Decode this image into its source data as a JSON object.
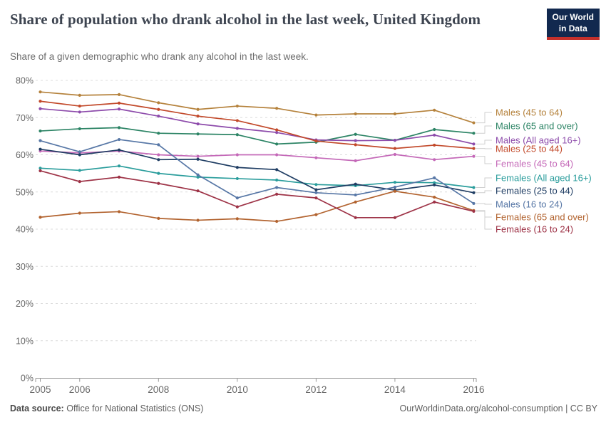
{
  "logo": {
    "line1": "Our World",
    "line2": "in Data",
    "bg_color": "#12294f",
    "accent_color": "#c5302b"
  },
  "footer": {
    "source_label": "Data source:",
    "source_value": "Office for National Statistics (ONS)",
    "rights": "OurWorldinData.org/alcohol-consumption | CC BY"
  },
  "chart_data": {
    "type": "line",
    "title": "Share of population who drank alcohol in the last week, United Kingdom",
    "subtitle": "Share of a given demographic who drank any alcohol in the last week.",
    "x": [
      2005,
      2006,
      2007,
      2008,
      2009,
      2010,
      2011,
      2012,
      2013,
      2014,
      2015,
      2016
    ],
    "xticks": [
      "2005",
      "2006",
      "2008",
      "2010",
      "2012",
      "2014",
      "2016"
    ],
    "yticks": [
      "0%",
      "10%",
      "20%",
      "30%",
      "40%",
      "50%",
      "60%",
      "70%",
      "80%"
    ],
    "ylim": [
      0,
      80
    ],
    "xlim": [
      2005,
      2016
    ],
    "grid": "horizontal-dashed",
    "legend_position": "right",
    "unit": "%",
    "series": [
      {
        "name": "Males (45 to 64)",
        "color": "#b5823c",
        "values": [
          76.9,
          76.0,
          76.2,
          74.0,
          72.2,
          73.1,
          72.5,
          70.7,
          71.0,
          71.0,
          72.0,
          68.6
        ]
      },
      {
        "name": "Males (65 and over)",
        "color": "#2c8465",
        "values": [
          66.4,
          67.0,
          67.3,
          65.8,
          65.6,
          65.4,
          62.9,
          63.4,
          65.5,
          63.9,
          66.8,
          65.8
        ]
      },
      {
        "name": "Males (All aged 16+)",
        "color": "#8d4bab",
        "values": [
          72.4,
          71.5,
          72.3,
          70.4,
          68.3,
          67.1,
          66.0,
          64.0,
          63.8,
          63.9,
          65.3,
          62.9
        ]
      },
      {
        "name": "Males (25 to 44)",
        "color": "#c2492a",
        "values": [
          74.4,
          73.1,
          73.9,
          72.2,
          70.4,
          69.2,
          66.7,
          63.7,
          62.7,
          61.7,
          62.6,
          61.7
        ]
      },
      {
        "name": "Females (45 to 64)",
        "color": "#c469b8",
        "values": [
          61.0,
          60.5,
          61.0,
          60.0,
          59.6,
          60.0,
          60.0,
          59.2,
          58.4,
          60.1,
          58.7,
          59.6
        ]
      },
      {
        "name": "Females (All aged 16+)",
        "color": "#2a9d9c",
        "values": [
          56.4,
          55.8,
          57.0,
          55.0,
          54.0,
          53.6,
          53.2,
          52.0,
          51.7,
          52.6,
          52.5,
          51.2
        ]
      },
      {
        "name": "Females (25 to 44)",
        "color": "#1f3d63",
        "values": [
          61.5,
          60.0,
          61.3,
          58.7,
          58.8,
          56.6,
          56.0,
          50.6,
          52.1,
          50.5,
          51.9,
          49.8
        ]
      },
      {
        "name": "Males (16 to 24)",
        "color": "#5777a6",
        "values": [
          63.8,
          60.8,
          64.1,
          62.7,
          54.6,
          48.4,
          51.2,
          49.8,
          49.2,
          51.3,
          53.8,
          46.9
        ]
      },
      {
        "name": "Females (65 and over)",
        "color": "#b2632f",
        "values": [
          43.2,
          44.3,
          44.7,
          42.9,
          42.4,
          42.8,
          42.1,
          43.9,
          47.3,
          50.2,
          48.6,
          45.0
        ]
      },
      {
        "name": "Females (16 to 24)",
        "color": "#9e3347",
        "values": [
          55.7,
          52.8,
          54.0,
          52.3,
          50.3,
          46.0,
          49.4,
          48.4,
          43.1,
          43.1,
          47.3,
          44.8
        ]
      }
    ]
  }
}
